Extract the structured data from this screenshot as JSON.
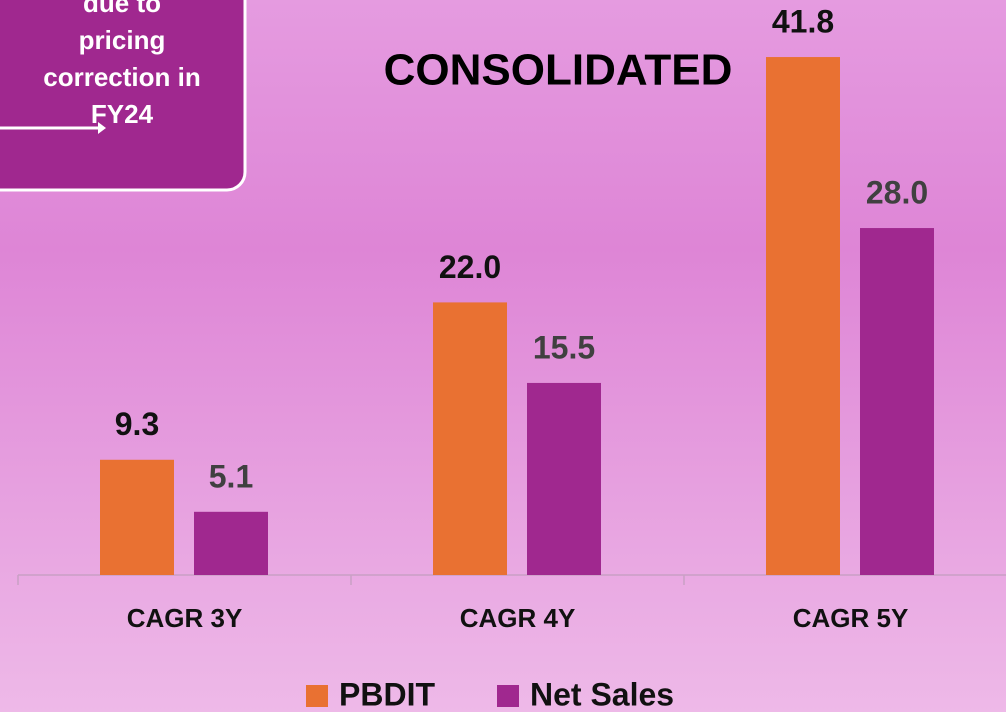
{
  "chart_data": {
    "type": "bar",
    "title": "CONSOLIDATED",
    "annotation": [
      "due to",
      "pricing",
      "correction in",
      "FY24"
    ],
    "categories": [
      "CAGR 3Y",
      "CAGR 4Y",
      "CAGR 5Y"
    ],
    "series": [
      {
        "name": "PBDIT",
        "color": "#e97132",
        "label_color": "#111111",
        "values": [
          9.3,
          22.0,
          41.8
        ],
        "value_labels": [
          "9.3",
          "22.0",
          "41.8"
        ]
      },
      {
        "name": "Net Sales",
        "color": "#a0288f",
        "label_color": "#404040",
        "values": [
          5.1,
          15.5,
          28.0
        ],
        "value_labels": [
          "5.1",
          "15.5",
          "28.0"
        ]
      }
    ],
    "ylim": [
      0,
      45
    ],
    "legend": "bottom"
  }
}
